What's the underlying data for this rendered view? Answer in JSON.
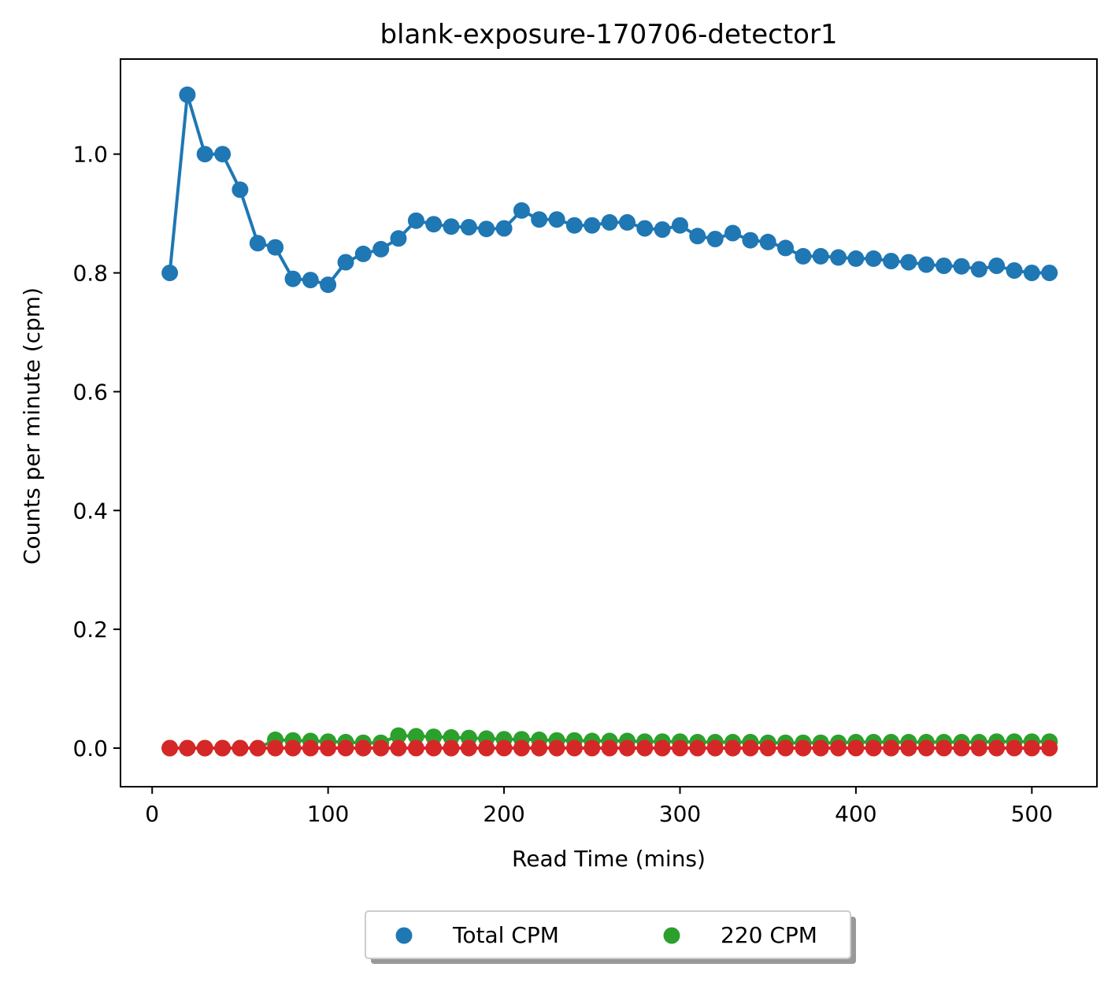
{
  "chart_data": {
    "type": "line",
    "title": "blank-exposure-170706-detector1",
    "xlabel": "Read Time (mins)",
    "ylabel": "Counts per minute (cpm)",
    "xlim": [
      -18,
      537
    ],
    "ylim": [
      -0.065,
      1.16
    ],
    "xticks": [
      0,
      100,
      200,
      300,
      400,
      500
    ],
    "xtick_labels": [
      "0",
      "100",
      "200",
      "300",
      "400",
      "500"
    ],
    "yticks": [
      0.0,
      0.2,
      0.4,
      0.6,
      0.8,
      1.0
    ],
    "ytick_labels": [
      "0.0",
      "0.2",
      "0.4",
      "0.6",
      "0.8",
      "1.0"
    ],
    "grid": false,
    "legend_position": "bottom-center, below plot",
    "legend_columns": 2,
    "x": [
      10,
      20,
      30,
      40,
      50,
      60,
      70,
      80,
      90,
      100,
      110,
      120,
      130,
      140,
      150,
      160,
      170,
      180,
      190,
      200,
      210,
      220,
      230,
      240,
      250,
      260,
      270,
      280,
      290,
      300,
      310,
      320,
      330,
      340,
      350,
      360,
      370,
      380,
      390,
      400,
      410,
      420,
      430,
      440,
      450,
      460,
      470,
      480,
      490,
      500,
      510
    ],
    "series": [
      {
        "name": "Total CPM",
        "in_legend": true,
        "color": "#1f77b4",
        "values": [
          0.8,
          1.1,
          1.0,
          1.0,
          0.94,
          0.85,
          0.843,
          0.79,
          0.788,
          0.78,
          0.818,
          0.832,
          0.84,
          0.858,
          0.888,
          0.882,
          0.878,
          0.877,
          0.874,
          0.875,
          0.905,
          0.89,
          0.89,
          0.88,
          0.88,
          0.885,
          0.885,
          0.875,
          0.873,
          0.88,
          0.862,
          0.857,
          0.867,
          0.855,
          0.852,
          0.842,
          0.828,
          0.828,
          0.826,
          0.824,
          0.824,
          0.82,
          0.818,
          0.814,
          0.812,
          0.811,
          0.806,
          0.812,
          0.804,
          0.8,
          0.8
        ]
      },
      {
        "name": "220 CPM",
        "in_legend": true,
        "color": "#2ca02c",
        "values": [
          0.0,
          0.0,
          0.0,
          0.0,
          0.0,
          0.0,
          0.014,
          0.013,
          0.012,
          0.011,
          0.01,
          0.009,
          0.009,
          0.021,
          0.02,
          0.019,
          0.018,
          0.017,
          0.016,
          0.015,
          0.015,
          0.014,
          0.013,
          0.013,
          0.012,
          0.012,
          0.012,
          0.011,
          0.011,
          0.011,
          0.01,
          0.01,
          0.01,
          0.01,
          0.009,
          0.009,
          0.009,
          0.009,
          0.009,
          0.01,
          0.01,
          0.01,
          0.01,
          0.01,
          0.01,
          0.01,
          0.01,
          0.011,
          0.011,
          0.011,
          0.011
        ]
      },
      {
        "name": "",
        "in_legend": false,
        "color": "#d62728",
        "values": [
          0,
          0,
          0,
          0,
          0,
          0,
          0,
          0,
          0,
          0,
          0,
          0,
          0,
          0,
          0,
          0,
          0,
          0,
          0,
          0,
          0,
          0,
          0,
          0,
          0,
          0,
          0,
          0,
          0,
          0,
          0,
          0,
          0,
          0,
          0,
          0,
          0,
          0,
          0,
          0,
          0,
          0,
          0,
          0,
          0,
          0,
          0,
          0,
          0,
          0,
          0
        ]
      }
    ]
  }
}
